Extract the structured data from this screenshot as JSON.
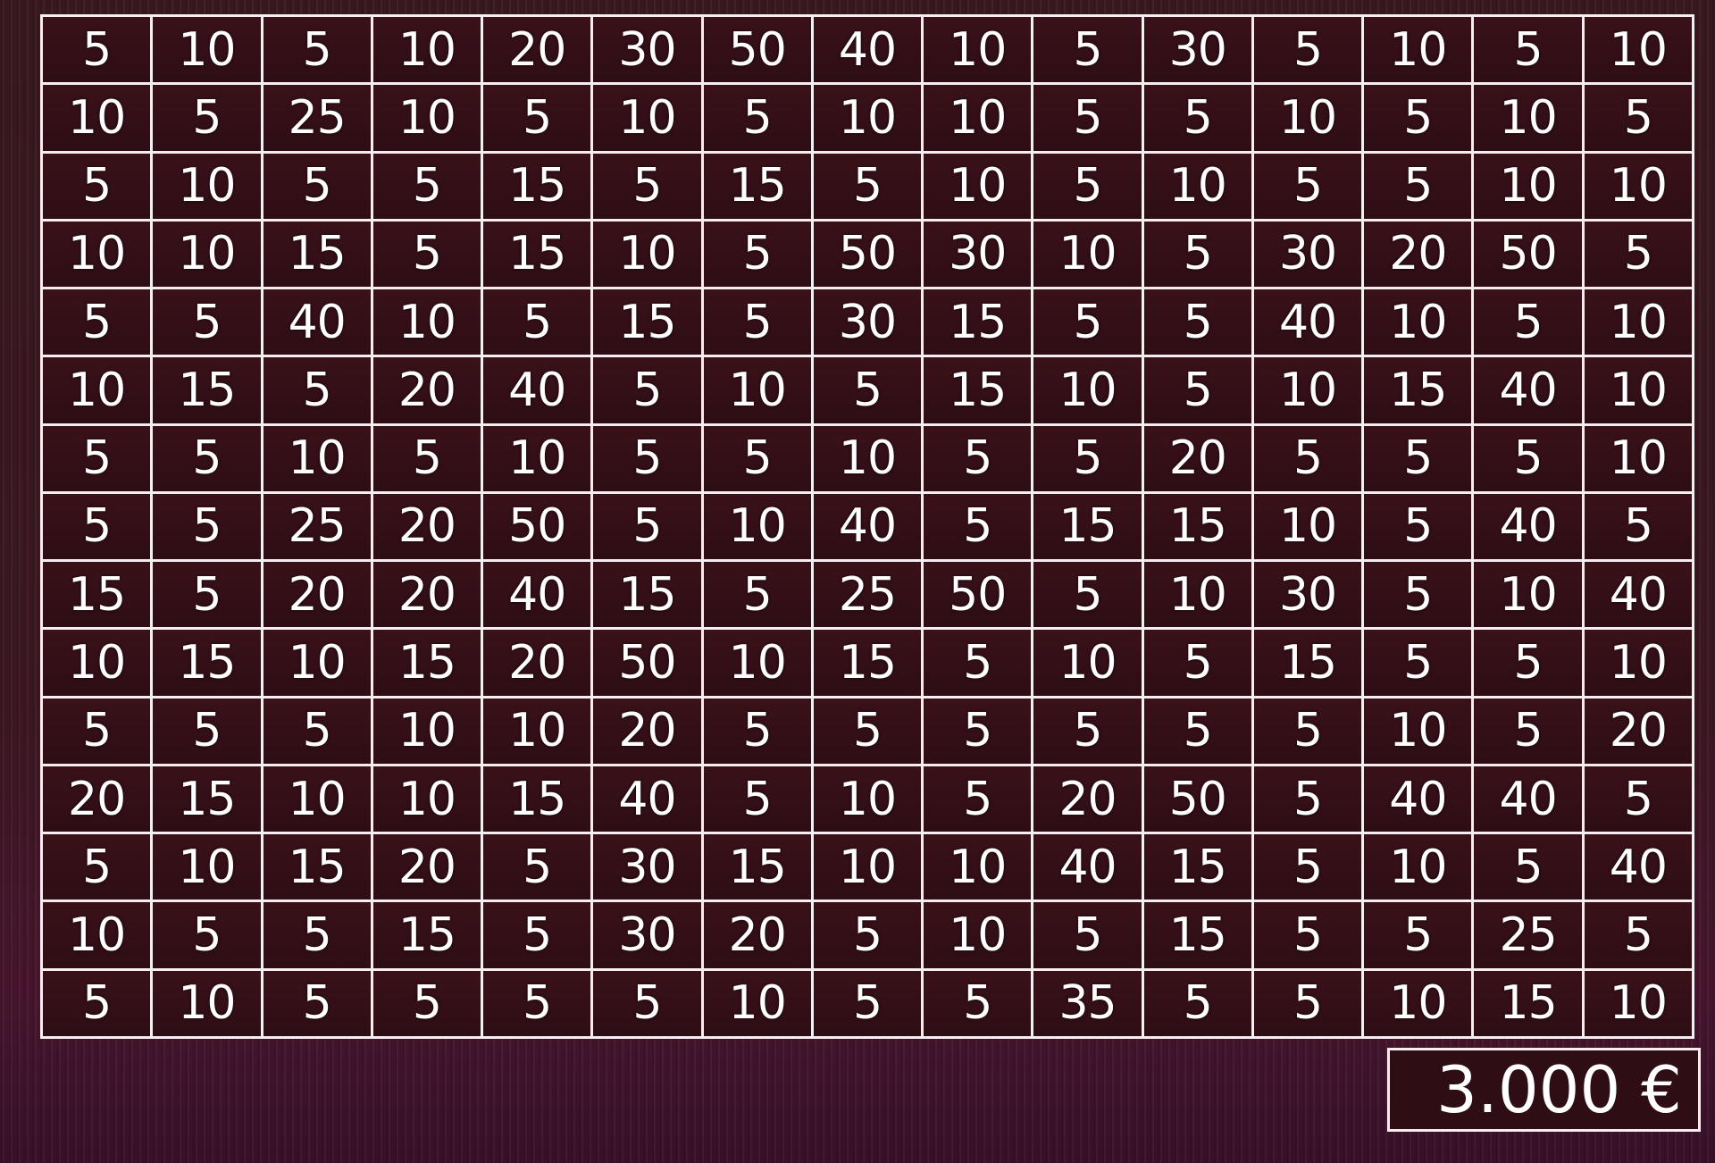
{
  "grid": {
    "rows": [
      [
        5,
        10,
        5,
        10,
        20,
        30,
        50,
        40,
        10,
        5,
        30,
        5,
        10,
        5,
        10
      ],
      [
        10,
        5,
        25,
        10,
        5,
        10,
        5,
        10,
        10,
        5,
        5,
        10,
        5,
        10,
        5
      ],
      [
        5,
        10,
        5,
        5,
        15,
        5,
        15,
        5,
        10,
        5,
        10,
        5,
        5,
        10,
        10
      ],
      [
        10,
        10,
        15,
        5,
        15,
        10,
        5,
        50,
        30,
        10,
        5,
        30,
        20,
        50,
        5
      ],
      [
        5,
        5,
        40,
        10,
        5,
        15,
        5,
        30,
        15,
        5,
        5,
        40,
        10,
        5,
        10
      ],
      [
        10,
        15,
        5,
        20,
        40,
        5,
        10,
        5,
        15,
        10,
        5,
        10,
        15,
        40,
        10
      ],
      [
        5,
        5,
        10,
        5,
        10,
        5,
        5,
        10,
        5,
        5,
        20,
        5,
        5,
        5,
        10
      ],
      [
        5,
        5,
        25,
        20,
        50,
        5,
        10,
        40,
        5,
        15,
        15,
        10,
        5,
        40,
        5
      ],
      [
        15,
        5,
        20,
        20,
        40,
        15,
        5,
        25,
        50,
        5,
        10,
        30,
        5,
        10,
        40
      ],
      [
        10,
        15,
        10,
        15,
        20,
        50,
        10,
        15,
        5,
        10,
        5,
        15,
        5,
        5,
        10
      ],
      [
        5,
        5,
        5,
        10,
        10,
        20,
        5,
        5,
        5,
        5,
        5,
        5,
        10,
        5,
        20
      ],
      [
        20,
        15,
        10,
        10,
        15,
        40,
        5,
        10,
        5,
        20,
        50,
        5,
        40,
        40,
        5
      ],
      [
        5,
        10,
        15,
        20,
        5,
        30,
        15,
        10,
        10,
        40,
        15,
        5,
        10,
        5,
        40
      ],
      [
        10,
        5,
        5,
        15,
        5,
        30,
        20,
        5,
        10,
        5,
        15,
        5,
        5,
        25,
        5
      ],
      [
        5,
        10,
        5,
        5,
        5,
        5,
        10,
        5,
        5,
        35,
        5,
        5,
        10,
        15,
        10
      ]
    ]
  },
  "prize": {
    "amount": "3.000 €"
  },
  "colors": {
    "background": "#3a1a20",
    "cell": "#2e0d15",
    "lines": "#f4eef0",
    "text": "#ffffff"
  }
}
